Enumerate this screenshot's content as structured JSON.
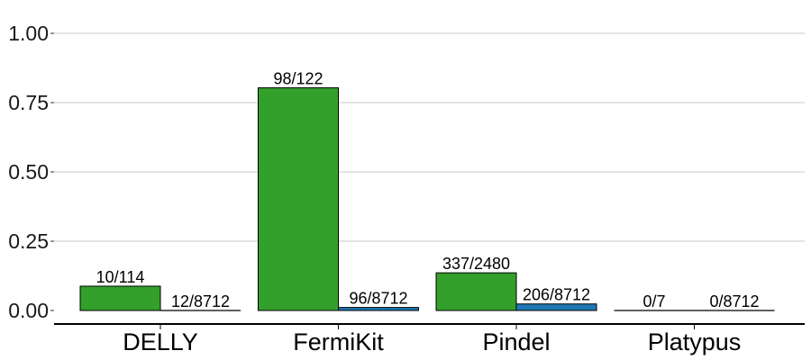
{
  "chart_data": {
    "type": "bar",
    "categories": [
      "DELLY",
      "FermiKit",
      "Pindel",
      "Platypus"
    ],
    "series": [
      {
        "color": "#33a02c",
        "values": [
          0.0877,
          0.8033,
          0.1359,
          0.0
        ],
        "labels": [
          "10/114",
          "98/122",
          "337/2480",
          "0/7"
        ]
      },
      {
        "color": "#1f78b4",
        "values": [
          0.0014,
          0.011,
          0.0236,
          0.0
        ],
        "labels": [
          "12/8712",
          "96/8712",
          "206/8712",
          "0/8712"
        ]
      }
    ],
    "y_ticks": [
      "0.00",
      "0.25",
      "0.50",
      "0.75",
      "1.00"
    ],
    "ylim": [
      0,
      1.0
    ],
    "grid": "horizontal",
    "legend": "none"
  }
}
